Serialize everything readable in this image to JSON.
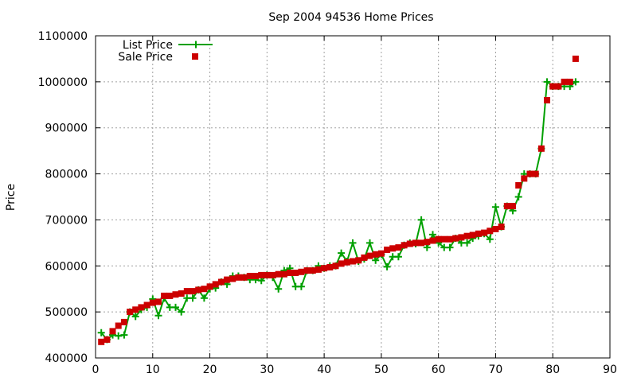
{
  "chart_data": {
    "type": "line",
    "title": "Sep 2004 94536 Home Prices",
    "xlabel": "",
    "ylabel": "Price",
    "xlim": [
      0,
      90
    ],
    "ylim": [
      400000,
      1100000
    ],
    "xticks": [
      0,
      10,
      20,
      30,
      40,
      50,
      60,
      70,
      80,
      90
    ],
    "yticks": [
      400000,
      500000,
      600000,
      700000,
      800000,
      900000,
      1000000,
      1100000
    ],
    "grid": true,
    "legend_position": "top-left",
    "series": [
      {
        "name": "List Price",
        "style": "line+plus-markers",
        "color": "#00a000",
        "x": [
          1,
          2,
          3,
          4,
          5,
          6,
          7,
          8,
          9,
          10,
          11,
          12,
          13,
          14,
          15,
          16,
          17,
          18,
          19,
          20,
          21,
          22,
          23,
          24,
          25,
          26,
          27,
          28,
          29,
          30,
          31,
          32,
          33,
          34,
          35,
          36,
          37,
          38,
          39,
          40,
          41,
          42,
          43,
          44,
          45,
          46,
          47,
          48,
          49,
          50,
          51,
          52,
          53,
          54,
          55,
          56,
          57,
          58,
          59,
          60,
          61,
          62,
          63,
          64,
          65,
          66,
          67,
          68,
          69,
          70,
          71,
          72,
          73,
          74,
          75,
          76,
          77,
          78,
          79,
          80,
          81,
          82,
          83,
          84
        ],
        "y": [
          455000,
          440000,
          450000,
          448000,
          450000,
          500000,
          490000,
          505000,
          510000,
          528000,
          492000,
          530000,
          510000,
          510000,
          500000,
          530000,
          530000,
          548000,
          530000,
          550000,
          552000,
          565000,
          560000,
          578000,
          578000,
          575000,
          570000,
          570000,
          568000,
          580000,
          575000,
          550000,
          590000,
          595000,
          555000,
          555000,
          590000,
          590000,
          600000,
          595000,
          600000,
          600000,
          628000,
          610000,
          650000,
          610000,
          615000,
          650000,
          612000,
          625000,
          598000,
          620000,
          620000,
          645000,
          650000,
          648000,
          700000,
          640000,
          668000,
          650000,
          640000,
          640000,
          660000,
          650000,
          650000,
          660000,
          665000,
          670000,
          658000,
          728000,
          685000,
          730000,
          720000,
          750000,
          800000,
          800000,
          800000,
          855000,
          1000000,
          990000,
          990000,
          990000,
          990000,
          1000000
        ]
      },
      {
        "name": "Sale Price",
        "style": "square-markers",
        "color": "#cc0000",
        "x": [
          1,
          2,
          3,
          4,
          5,
          6,
          7,
          8,
          9,
          10,
          11,
          12,
          13,
          14,
          15,
          16,
          17,
          18,
          19,
          20,
          21,
          22,
          23,
          24,
          25,
          26,
          27,
          28,
          29,
          30,
          31,
          32,
          33,
          34,
          35,
          36,
          37,
          38,
          39,
          40,
          41,
          42,
          43,
          44,
          45,
          46,
          47,
          48,
          49,
          50,
          51,
          52,
          53,
          54,
          55,
          56,
          57,
          58,
          59,
          60,
          61,
          62,
          63,
          64,
          65,
          66,
          67,
          68,
          69,
          70,
          71,
          72,
          73,
          74,
          75,
          76,
          77,
          78,
          79,
          80,
          81,
          82,
          83,
          84
        ],
        "y": [
          435000,
          440000,
          458000,
          470000,
          478000,
          500000,
          505000,
          510000,
          515000,
          520000,
          522000,
          535000,
          535000,
          538000,
          540000,
          545000,
          545000,
          548000,
          550000,
          555000,
          560000,
          565000,
          570000,
          572000,
          575000,
          575000,
          578000,
          578000,
          580000,
          580000,
          580000,
          582000,
          582000,
          585000,
          585000,
          587000,
          590000,
          590000,
          592000,
          595000,
          597000,
          600000,
          605000,
          608000,
          610000,
          612000,
          618000,
          622000,
          625000,
          627000,
          635000,
          638000,
          640000,
          645000,
          648000,
          650000,
          650000,
          652000,
          655000,
          658000,
          658000,
          658000,
          660000,
          662000,
          665000,
          667000,
          670000,
          672000,
          676000,
          680000,
          685000,
          730000,
          730000,
          775000,
          790000,
          800000,
          800000,
          855000,
          960000,
          990000,
          990000,
          1000000,
          1000000,
          1050000
        ]
      }
    ]
  }
}
